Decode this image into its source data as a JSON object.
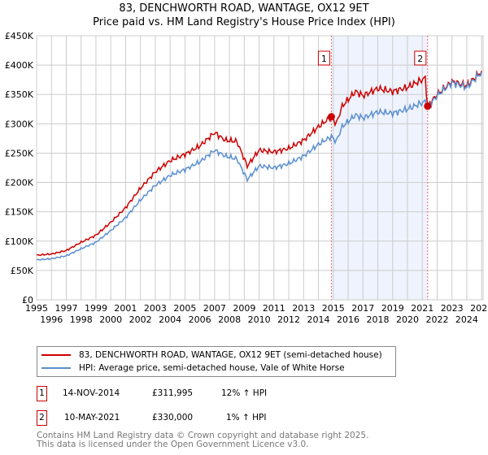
{
  "title": "83, DENCHWORTH ROAD, WANTAGE, OX12 9ET",
  "subtitle": "Price paid vs. HM Land Registry's House Price Index (HPI)",
  "chart_data": {
    "type": "line",
    "xlim": [
      1995,
      2025.1
    ],
    "ylim": [
      0,
      450000
    ],
    "y_ticks": [
      0,
      50000,
      100000,
      150000,
      200000,
      250000,
      300000,
      350000,
      400000,
      450000
    ],
    "y_tick_labels": [
      "£0",
      "£50K",
      "£100K",
      "£150K",
      "£200K",
      "£250K",
      "£300K",
      "£350K",
      "£400K",
      "£450K"
    ],
    "x_ticks": [
      1995,
      1996,
      1997,
      1998,
      1999,
      2000,
      2001,
      2002,
      2003,
      2004,
      2005,
      2006,
      2007,
      2008,
      2009,
      2010,
      2011,
      2012,
      2013,
      2014,
      2015,
      2016,
      2017,
      2018,
      2019,
      2020,
      2021,
      2022,
      2023,
      2024,
      2025
    ],
    "grid": true,
    "shaded_region": [
      2014.87,
      2021.36
    ],
    "series": [
      {
        "name": "83, DENCHWORTH ROAD, WANTAGE, OX12 9ET (semi-detached house)",
        "color": "#cc0000",
        "x": [
          1995,
          1996,
          1997,
          1998,
          1999,
          2000,
          2001,
          2002,
          2003,
          2004,
          2005,
          2006,
          2007,
          2007.7,
          2008.5,
          2009.2,
          2010,
          2011,
          2012,
          2013,
          2014,
          2014.87,
          2015.2,
          2015.6,
          2016.5,
          2017,
          2018,
          2019,
          2020,
          2021.2,
          2021.36,
          2022,
          2023,
          2024,
          2025
        ],
        "y": [
          76000,
          78000,
          84000,
          98000,
          110000,
          132000,
          157000,
          190000,
          218000,
          237000,
          248000,
          262000,
          285000,
          272000,
          270000,
          228000,
          255000,
          252000,
          258000,
          272000,
          295000,
          311995,
          300000,
          330000,
          355000,
          348000,
          360000,
          355000,
          362000,
          378000,
          330000,
          350000,
          372000,
          365000,
          390000
        ]
      },
      {
        "name": "HPI: Average price, semi-detached house, Vale of White Horse",
        "color": "#5b8fd0",
        "x": [
          1995,
          1996,
          1997,
          1998,
          1999,
          2000,
          2001,
          2002,
          2003,
          2004,
          2005,
          2006,
          2007,
          2007.7,
          2008.5,
          2009.2,
          2010,
          2011,
          2012,
          2013,
          2014,
          2014.87,
          2015.2,
          2015.6,
          2016.5,
          2017,
          2018,
          2019,
          2020,
          2021.2,
          2021.36,
          2022,
          2023,
          2024,
          2025
        ],
        "y": [
          68000,
          70000,
          75000,
          87000,
          98000,
          118000,
          140000,
          170000,
          195000,
          212000,
          222000,
          235000,
          255000,
          245000,
          240000,
          205000,
          228000,
          225000,
          232000,
          245000,
          265000,
          278000,
          270000,
          295000,
          315000,
          310000,
          320000,
          318000,
          325000,
          338000,
          327000,
          348000,
          370000,
          362000,
          388000
        ]
      }
    ],
    "sales": [
      {
        "label": "1",
        "x": 2014.87,
        "y": 311995
      },
      {
        "label": "2",
        "x": 2021.36,
        "y": 330000
      }
    ]
  },
  "legend": {
    "red": "83, DENCHWORTH ROAD, WANTAGE, OX12 9ET (semi-detached house)",
    "blue": "HPI: Average price, semi-detached house, Vale of White Horse"
  },
  "annotations": [
    {
      "num": "1",
      "date": "14-NOV-2014",
      "price": "£311,995",
      "hpi": "12% ↑ HPI"
    },
    {
      "num": "2",
      "date": "10-MAY-2021",
      "price": "£330,000",
      "hpi": "1% ↑ HPI"
    }
  ],
  "footer": {
    "line1": "Contains HM Land Registry data © Crown copyright and database right 2025.",
    "line2": "This data is licensed under the Open Government Licence v3.0."
  }
}
